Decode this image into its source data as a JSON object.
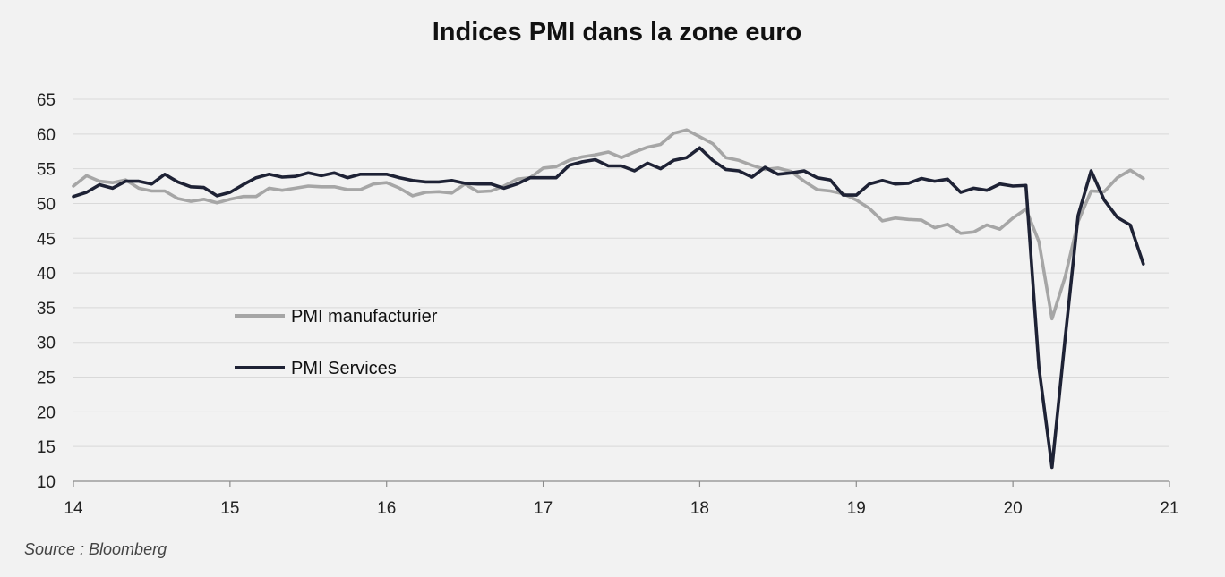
{
  "chart_data": {
    "type": "line",
    "title": "Indices PMI dans la zone euro",
    "source": "Source : Bloomberg",
    "xlabel": "",
    "ylabel": "",
    "x_tick_labels": [
      "14",
      "15",
      "16",
      "17",
      "18",
      "19",
      "20",
      "21"
    ],
    "y_ticks": [
      10,
      15,
      20,
      25,
      30,
      35,
      40,
      45,
      50,
      55,
      60,
      65
    ],
    "xlim": [
      2014,
      2021
    ],
    "ylim": [
      10,
      65
    ],
    "grid": true,
    "legend_position": "left, inside plot",
    "series": [
      {
        "name": "PMI manufacturier",
        "color": "#a6a6a6",
        "start": 2014,
        "step": 0.08333,
        "values": [
          52.5,
          54.0,
          53.2,
          53.0,
          53.4,
          52.2,
          51.8,
          51.8,
          50.7,
          50.3,
          50.6,
          50.1,
          50.6,
          51.0,
          51.0,
          52.2,
          51.9,
          52.2,
          52.5,
          52.4,
          52.4,
          52.0,
          52.0,
          52.8,
          53.0,
          52.2,
          51.1,
          51.6,
          51.7,
          51.5,
          52.8,
          51.7,
          51.8,
          52.5,
          53.5,
          53.7,
          55.1,
          55.3,
          56.2,
          56.7,
          57.0,
          57.4,
          56.6,
          57.4,
          58.1,
          58.5,
          60.1,
          60.6,
          59.6,
          58.6,
          56.6,
          56.2,
          55.5,
          54.9,
          55.1,
          54.6,
          53.2,
          52.0,
          51.8,
          51.4,
          50.5,
          49.3,
          47.5,
          47.9,
          47.7,
          47.6,
          46.5,
          47.0,
          45.7,
          45.9,
          46.9,
          46.3,
          47.9,
          49.2,
          44.5,
          33.4,
          39.4,
          47.4,
          51.8,
          51.7,
          53.7,
          54.8,
          53.6
        ]
      },
      {
        "name": "PMI Services",
        "color": "#1e2235",
        "start": 2014,
        "step": 0.08333,
        "values": [
          51.0,
          51.6,
          52.7,
          52.2,
          53.2,
          53.2,
          52.8,
          54.2,
          53.1,
          52.4,
          52.3,
          51.1,
          51.6,
          52.7,
          53.7,
          54.2,
          53.8,
          53.9,
          54.4,
          54.0,
          54.4,
          53.7,
          54.2,
          54.2,
          54.2,
          53.7,
          53.3,
          53.1,
          53.1,
          53.3,
          52.9,
          52.8,
          52.8,
          52.2,
          52.8,
          53.7,
          53.7,
          53.7,
          55.5,
          56.0,
          56.3,
          55.4,
          55.4,
          54.7,
          55.8,
          55.0,
          56.2,
          56.6,
          58.0,
          56.2,
          54.9,
          54.7,
          53.8,
          55.2,
          54.2,
          54.4,
          54.7,
          53.7,
          53.4,
          51.2,
          51.2,
          52.8,
          53.3,
          52.8,
          52.9,
          53.6,
          53.2,
          53.5,
          51.6,
          52.2,
          51.9,
          52.8,
          52.5,
          52.6,
          26.4,
          12.0,
          30.5,
          48.3,
          54.7,
          50.5,
          48.0,
          46.9,
          41.3
        ]
      }
    ]
  }
}
